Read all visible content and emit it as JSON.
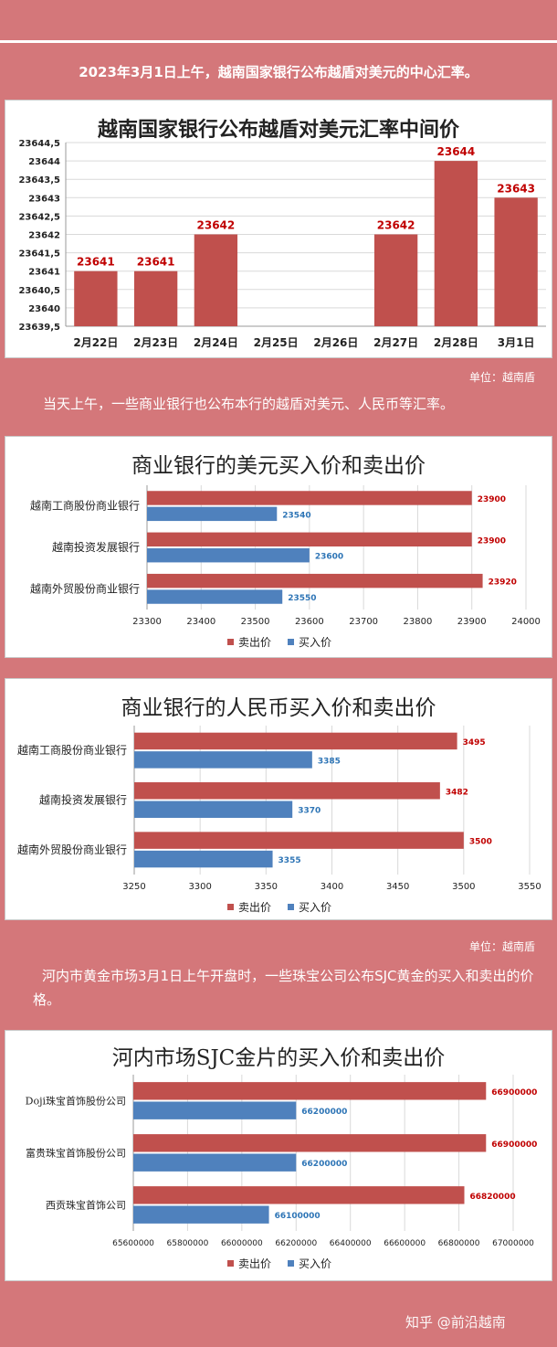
{
  "intro_text": "2023年3月1日上午，越南国家银行公布越盾对美元的中心汇率。",
  "unit_label_1": "单位：越南盾",
  "mid_text": "当天上午，一些商业银行也公布本行的越盾对美元、人民币等汇率。",
  "unit_label_2": "单位：越南盾",
  "gold_text": "河内市黄金市场3月1日上午开盘时，一些珠宝公司公布SJC黄金的买入和卖出的价格。",
  "watermark": "知乎 @前沿越南",
  "colors": {
    "sell": "#c0504d",
    "buy": "#4f81bd",
    "sell_label": "#c00000",
    "buy_label": "#2e75b6",
    "background": "#d4777a"
  },
  "legend": {
    "sell": "卖出价",
    "buy": "买入价"
  },
  "chart_data": [
    {
      "type": "bar",
      "title": "越南国家银行公布越盾对美元汇率中间价",
      "categories": [
        "2月22日",
        "2月23日",
        "2月24日",
        "2月25日",
        "2月26日",
        "2月27日",
        "2月28日",
        "3月1日"
      ],
      "values": [
        23641,
        23641,
        23642,
        null,
        null,
        23642,
        23644,
        23643
      ],
      "value_labels": [
        "23641",
        "23641",
        "23642",
        "",
        "",
        "23642",
        "23644",
        "23643"
      ],
      "ylim": [
        23639.5,
        23644.5
      ],
      "yticks": [
        "23644,5",
        "23644",
        "23643,5",
        "23643",
        "23642,5",
        "23642",
        "23641,5",
        "23641",
        "23640,5",
        "23640",
        "23639,5"
      ],
      "grid": true
    },
    {
      "type": "bar",
      "orientation": "horizontal",
      "title": "商业银行的美元买入价和卖出价",
      "categories": [
        "越南工商股份商业银行",
        "越南投资发展银行",
        "越南外贸股份商业银行"
      ],
      "series": [
        {
          "name": "卖出价",
          "values": [
            23900,
            23900,
            23920
          ]
        },
        {
          "name": "买入价",
          "values": [
            23540,
            23600,
            23550
          ]
        }
      ],
      "xlim": [
        23300,
        24000
      ],
      "xticks": [
        "23300",
        "23400",
        "23500",
        "23600",
        "23700",
        "23800",
        "23900",
        "24000"
      ],
      "legend_position": "bottom"
    },
    {
      "type": "bar",
      "orientation": "horizontal",
      "title": "商业银行的人民币买入价和卖出价",
      "categories": [
        "越南工商股份商业银行",
        "越南投资发展银行",
        "越南外贸股份商业银行"
      ],
      "series": [
        {
          "name": "卖出价",
          "values": [
            3495,
            3482,
            3500
          ]
        },
        {
          "name": "买入价",
          "values": [
            3385,
            3370,
            3355
          ]
        }
      ],
      "xlim": [
        3250,
        3550
      ],
      "xticks": [
        "3250",
        "3300",
        "3350",
        "3400",
        "3450",
        "3500",
        "3550"
      ],
      "legend_position": "bottom"
    },
    {
      "type": "bar",
      "orientation": "horizontal",
      "title": "河内市场SJC金片的买入价和卖出价",
      "categories": [
        "Doji珠宝首饰股份公司",
        "富贵珠宝首饰股份公司",
        "西贡珠宝首饰公司"
      ],
      "series": [
        {
          "name": "卖出价",
          "values": [
            66900000,
            66900000,
            66820000
          ]
        },
        {
          "name": "买入价",
          "values": [
            66200000,
            66200000,
            66100000
          ]
        }
      ],
      "xlim": [
        65600000,
        67000000
      ],
      "xticks": [
        "65600000",
        "65800000",
        "66000000",
        "66200000",
        "66400000",
        "66600000",
        "66800000",
        "67000000"
      ],
      "legend_position": "bottom"
    }
  ]
}
